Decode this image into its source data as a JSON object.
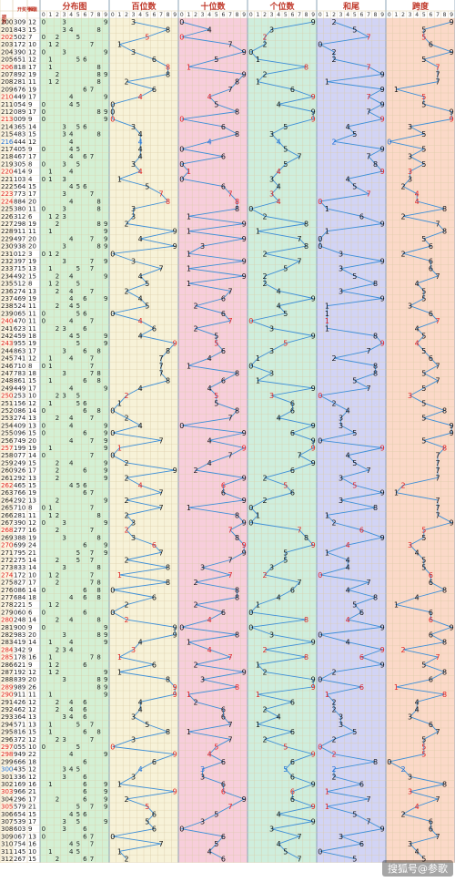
{
  "header": {
    "issue_label": "期数",
    "number_label": "开奖号码",
    "sum_label": "和值",
    "digit_labels": [
      "0",
      "1",
      "2",
      "3",
      "4",
      "5",
      "6",
      "7",
      "8",
      "9"
    ]
  },
  "watermark": "搜狐号@参歌",
  "colors": {
    "red": "#e02020",
    "blue": "#1f6fd6",
    "line": "#3d8fd8",
    "grid": "#d9c9a4",
    "dist_bg": "#d4f0d4",
    "hundreds_bg": "#f7f2d8",
    "tens_bg": "#f7cedb",
    "units_bg": "#cfeedd",
    "sum_bg": "#d2d4f5",
    "span_bg": "#fbd9c8"
  },
  "chart_data": {
    "type": "table",
    "title": "",
    "panels": [
      "分布图",
      "百位数",
      "十位数",
      "个位数",
      "和尾",
      "跨度"
    ],
    "issue_start": 200,
    "numbers": [
      "309",
      "843",
      "502",
      "172",
      "390",
      "651",
      "818",
      "892",
      "281",
      "676",
      "449",
      "054",
      "089",
      "009",
      "365",
      "483",
      "444",
      "405",
      "467",
      "305",
      "414",
      "103",
      "564",
      "773",
      "884",
      "380",
      "312",
      "298",
      "911",
      "497",
      "938",
      "012",
      "397",
      "715",
      "492",
      "512",
      "274",
      "469",
      "524",
      "065",
      "470",
      "623",
      "459",
      "955",
      "863",
      "741",
      "710",
      "783",
      "861",
      "449",
      "253",
      "156",
      "086",
      "274",
      "409",
      "096",
      "749",
      "199",
      "077",
      "249",
      "926",
      "292",
      "465",
      "766",
      "292",
      "710",
      "281",
      "390",
      "277",
      "388",
      "699",
      "795",
      "275",
      "833",
      "172",
      "827",
      "086",
      "684",
      "221",
      "060",
      "248",
      "900",
      "983",
      "419",
      "342",
      "178",
      "621",
      "192",
      "839",
      "989",
      "911",
      "426",
      "462",
      "364",
      "571",
      "816",
      "372",
      "055",
      "949",
      "666",
      "435",
      "336",
      "169",
      "966",
      "296",
      "579",
      "654",
      "539",
      "603",
      "067",
      "754",
      "145",
      "267"
    ],
    "red_issues": [
      202,
      206,
      210,
      213,
      220,
      223,
      224,
      240,
      243,
      250,
      257,
      262,
      268,
      270,
      274,
      280,
      284,
      285,
      289,
      290,
      297,
      298,
      303,
      305
    ],
    "blue_issues": [
      216,
      300
    ],
    "x_domain_per_panel": [
      0,
      9
    ]
  }
}
